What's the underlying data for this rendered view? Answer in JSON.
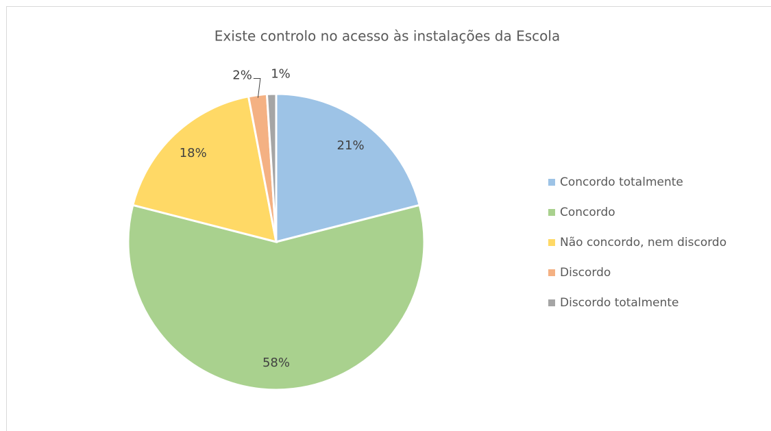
{
  "chart_data": {
    "type": "pie",
    "title": "Existe controlo no acesso às instalações da Escola",
    "categories": [
      "Concordo totalmente",
      "Concordo",
      "Não concordo, nem discordo",
      "Discordo",
      "Discordo totalmente"
    ],
    "values": [
      21,
      58,
      18,
      2,
      1
    ],
    "value_labels": [
      "21%",
      "58%",
      "18%",
      "2%",
      "1%"
    ],
    "colors": [
      "#9dc3e6",
      "#a9d18e",
      "#ffd966",
      "#f4b183",
      "#a5a5a5"
    ],
    "legend": "right"
  }
}
